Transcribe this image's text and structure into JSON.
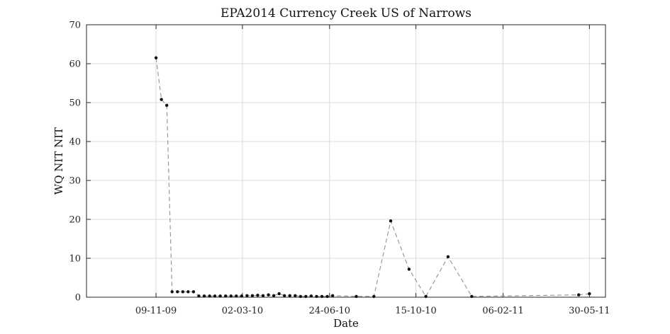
{
  "chart_data": {
    "type": "line",
    "title": "EPA2014 Currency Creek US of Narrows",
    "xlabel": "Date",
    "ylabel": "WQ NIT NIT",
    "x_axis_type": "date",
    "date_format": "DD-MM-YY",
    "xlim": [
      "2009-08-10",
      "2011-06-20"
    ],
    "ylim": [
      0,
      70
    ],
    "x_ticks": [
      "09-11-09",
      "02-03-10",
      "24-06-10",
      "15-10-10",
      "06-02-11",
      "30-05-11"
    ],
    "x_tick_dates": [
      "2009-11-09",
      "2010-03-02",
      "2010-06-24",
      "2010-10-15",
      "2011-02-06",
      "2011-05-30"
    ],
    "y_ticks": [
      0,
      10,
      20,
      30,
      40,
      50,
      60,
      70
    ],
    "grid": true,
    "line_style": "dashed",
    "line_color": "#999999",
    "marker_color": "#111111",
    "series": [
      {
        "x": [
          "2009-11-09",
          "2009-11-16",
          "2009-11-23",
          "2009-11-30",
          "2009-12-07",
          "2009-12-14",
          "2009-12-21",
          "2009-12-28",
          "2010-01-04",
          "2010-01-11",
          "2010-01-18",
          "2010-01-25",
          "2010-02-01",
          "2010-02-08",
          "2010-02-15",
          "2010-02-22",
          "2010-03-01",
          "2010-03-08",
          "2010-03-15",
          "2010-03-22",
          "2010-03-29",
          "2010-04-05",
          "2010-04-12",
          "2010-04-19",
          "2010-04-26",
          "2010-05-03",
          "2010-05-10",
          "2010-05-17",
          "2010-05-24",
          "2010-05-31",
          "2010-06-07",
          "2010-06-14",
          "2010-06-21",
          "2010-06-28",
          "2010-07-29",
          "2010-08-21",
          "2010-09-12",
          "2010-10-06",
          "2010-10-28",
          "2010-11-26",
          "2010-12-27",
          "2011-05-16",
          "2011-05-30"
        ],
        "y": [
          61.5,
          50.8,
          49.3,
          1.4,
          1.4,
          1.4,
          1.4,
          1.4,
          0.3,
          0.3,
          0.3,
          0.3,
          0.3,
          0.3,
          0.3,
          0.3,
          0.3,
          0.4,
          0.4,
          0.5,
          0.4,
          0.6,
          0.4,
          0.9,
          0.4,
          0.4,
          0.4,
          0.2,
          0.2,
          0.3,
          0.2,
          0.2,
          0.2,
          0.4,
          0.2,
          0.2,
          19.6,
          7.2,
          0.2,
          10.4,
          0.2,
          0.6,
          0.9
        ]
      }
    ]
  }
}
